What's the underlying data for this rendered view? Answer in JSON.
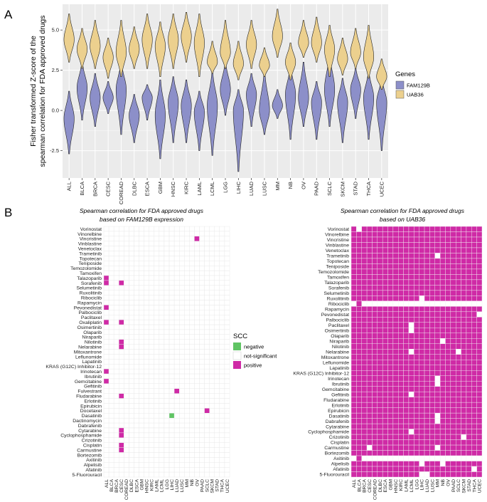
{
  "panel_a": {
    "label": "A",
    "legend": {
      "title": "Genes",
      "items": [
        {
          "name": "FAM129B",
          "color": "#8c8fc9"
        },
        {
          "name": "UAB36",
          "color": "#ecd08e"
        }
      ]
    }
  },
  "panel_b": {
    "label": "B",
    "left_title_line1": "Spearman correlation for FDA approved drugs",
    "left_title_line2": "based on FAM129B expression",
    "right_title_line1": "Spearman correlation for FDA approved drugs",
    "right_title_line2": "based on UAB36",
    "legend": {
      "title": "SCC",
      "items": [
        {
          "name": "negative",
          "color": "#5fc463"
        },
        {
          "name": "not-significant",
          "color": "#ffffff"
        },
        {
          "name": "positive",
          "color": "#cf2aa6"
        }
      ]
    }
  },
  "chart_data": [
    {
      "type": "violin",
      "title": "",
      "xlabel": "",
      "ylabel_line1": "Fisher transformed Z-score of the",
      "ylabel_line2": "spearman correlation for FDA approved drugs",
      "ylim": [
        -4.2,
        6.6
      ],
      "yticks": [
        "-2.5",
        "0.0",
        "2.5",
        "5.0"
      ],
      "ytick_values": [
        -2.5,
        0.0,
        2.5,
        5.0
      ],
      "categories": [
        "ALL",
        "BLCA",
        "BRCA",
        "CESC",
        "COREAD",
        "DLBC",
        "ESCA",
        "GBM",
        "HNSC",
        "KIRC",
        "LAML",
        "LCML",
        "LGG",
        "LIHC",
        "LUAD",
        "LUSC",
        "MM",
        "NB",
        "OV",
        "PAAD",
        "SCLC",
        "SKCM",
        "STAD",
        "THCA",
        "UCEC"
      ],
      "series": [
        {
          "name": "FAM129B",
          "min": [
            -2.7,
            -0.6,
            -1.0,
            -0.2,
            -1.5,
            -2.0,
            -0.6,
            -3.0,
            -2.0,
            -2.0,
            -2.5,
            -2.8,
            -0.3,
            -3.8,
            -1.0,
            -1.5,
            -0.5,
            -1.8,
            -1.0,
            -1.8,
            -1.0,
            -2.0,
            -0.5,
            -1.8,
            -2.5
          ],
          "mode": [
            -0.5,
            1.4,
            0.8,
            0.8,
            1.3,
            -0.3,
            0.8,
            -0.3,
            0.5,
            0.3,
            -0.1,
            0.3,
            1.3,
            0.0,
            1.0,
            0.0,
            0.3,
            1.0,
            0.8,
            0.5,
            1.3,
            0.5,
            1.3,
            0.8,
            0.5
          ],
          "max": [
            1.2,
            3.0,
            2.3,
            1.8,
            3.0,
            1.0,
            1.6,
            1.9,
            2.1,
            1.9,
            1.2,
            2.4,
            3.0,
            1.3,
            2.3,
            2.4,
            1.3,
            2.7,
            3.0,
            1.8,
            3.5,
            2.0,
            2.6,
            2.4,
            2.0
          ],
          "color": "#8c8fc9"
        },
        {
          "name": "UAB36",
          "min": [
            3.0,
            2.6,
            2.6,
            2.0,
            2.1,
            2.6,
            2.6,
            2.1,
            2.6,
            3.0,
            2.1,
            2.3,
            2.6,
            1.9,
            2.6,
            2.1,
            3.3,
            1.9,
            3.3,
            3.0,
            2.1,
            2.2,
            2.6,
            2.0,
            1.3
          ],
          "mode": [
            4.4,
            3.8,
            4.0,
            3.3,
            3.6,
            3.8,
            4.4,
            4.0,
            4.4,
            4.6,
            4.2,
            3.0,
            3.6,
            2.9,
            4.1,
            2.8,
            4.6,
            3.0,
            4.2,
            4.2,
            3.8,
            3.2,
            3.6,
            3.3,
            2.1
          ],
          "max": [
            6.0,
            5.1,
            5.6,
            4.5,
            5.6,
            5.2,
            6.0,
            5.5,
            6.0,
            6.1,
            6.0,
            4.3,
            5.6,
            4.3,
            5.6,
            3.9,
            6.3,
            4.2,
            5.6,
            5.8,
            5.3,
            4.5,
            5.1,
            5.3,
            3.2
          ],
          "color": "#ecd08e"
        }
      ]
    },
    {
      "type": "heatmap",
      "title": "Spearman correlation for FDA approved drugs based on FAM129B expression",
      "x": [
        "ALL",
        "BLCA",
        "BRCA",
        "CESC",
        "COREAD",
        "DLBC",
        "ESCA",
        "GBM",
        "HNSC",
        "KIRC",
        "LAML",
        "LCML",
        "LGG",
        "LIHC",
        "LUAD",
        "LUSC",
        "MM",
        "NB",
        "OV",
        "PAAD",
        "SCLC",
        "SKCM",
        "STAD",
        "THCA",
        "UCEC"
      ],
      "y": [
        "Vorinostat",
        "Vinorelbine",
        "Vincristine",
        "Vinblastine",
        "Venetoclax",
        "Trametinib",
        "Topotecan",
        "Teniposide",
        "Temozolomide",
        "Tamoxifen",
        "Talazoparib",
        "Sorafenib",
        "Selumetinib",
        "Ruxolitinib",
        "Ribociclib",
        "Rapamycin",
        "Pevonedistat",
        "Palbociclib",
        "Paclitaxel",
        "Oxaliplatin",
        "Osimertinib",
        "Olaparib",
        "Niraparib",
        "Nilotinib",
        "Nelarabine",
        "Mitoxantrone",
        "Leflunomide",
        "Lapatinib",
        "KRAS (G12C) Inhibitor-12",
        "Irinotecan",
        "Ibrutinib",
        "Gemcitabine",
        "Gefitinib",
        "Fulvestrant",
        "Fludarabine",
        "Erlotinib",
        "Epirubicin",
        "Docetaxel",
        "Dasatinib",
        "Dactinomycin",
        "Dabrafenib",
        "Cytarabine",
        "Cyclophosphamide",
        "Crizotinib",
        "Cisplatin",
        "Carmustine",
        "Bortezomib",
        "Axitinib",
        "Alpelisib",
        "Afatinib",
        "5-Fluorouracil"
      ],
      "default": "not-significant",
      "cells": [
        {
          "drug": "Vincristine",
          "cancer": "OV",
          "value": "positive"
        },
        {
          "drug": "Talazoparib",
          "cancer": "ALL",
          "value": "positive"
        },
        {
          "drug": "Sorafenib",
          "cancer": "ALL",
          "value": "positive"
        },
        {
          "drug": "Sorafenib",
          "cancer": "CESC",
          "value": "positive"
        },
        {
          "drug": "Pevonedistat",
          "cancer": "ALL",
          "value": "positive"
        },
        {
          "drug": "Oxaliplatin",
          "cancer": "ALL",
          "value": "positive"
        },
        {
          "drug": "Oxaliplatin",
          "cancer": "CESC",
          "value": "positive"
        },
        {
          "drug": "Nilotinib",
          "cancer": "CESC",
          "value": "positive"
        },
        {
          "drug": "Nelarabine",
          "cancer": "CESC",
          "value": "positive"
        },
        {
          "drug": "Irinotecan",
          "cancer": "ALL",
          "value": "positive"
        },
        {
          "drug": "Gemcitabine",
          "cancer": "ALL",
          "value": "positive"
        },
        {
          "drug": "Fulvestrant",
          "cancer": "LUAD",
          "value": "positive"
        },
        {
          "drug": "Fludarabine",
          "cancer": "CESC",
          "value": "positive"
        },
        {
          "drug": "Docetaxel",
          "cancer": "SCLC",
          "value": "positive"
        },
        {
          "drug": "Dasatinib",
          "cancer": "LIHC",
          "value": "negative"
        },
        {
          "drug": "Cytarabine",
          "cancer": "CESC",
          "value": "positive"
        },
        {
          "drug": "Cyclophosphamide",
          "cancer": "CESC",
          "value": "positive"
        },
        {
          "drug": "Cisplatin",
          "cancer": "CESC",
          "value": "positive"
        },
        {
          "drug": "Carmustine",
          "cancer": "CESC",
          "value": "positive"
        }
      ]
    },
    {
      "type": "heatmap",
      "title": "Spearman correlation for FDA approved drugs based on UAB36",
      "x": [
        "ALL",
        "BLCA",
        "BRCA",
        "CESC",
        "COREAD",
        "DLBC",
        "ESCA",
        "GBM",
        "HNSC",
        "KIRC",
        "LAML",
        "LCML",
        "LGG",
        "LIHC",
        "LUAD",
        "LUSC",
        "MM",
        "NB",
        "OV",
        "PAAD",
        "SCLC",
        "SKCM",
        "STAD",
        "THCA",
        "UCEC"
      ],
      "y": [
        "Vorinostat",
        "Vinorelbine",
        "Vincristine",
        "Vinblastine",
        "Venetoclax",
        "Trametinib",
        "Topotecan",
        "Teniposide",
        "Temozolomide",
        "Tamoxifen",
        "Talazoparib",
        "Sorafenib",
        "Selumetinib",
        "Ruxolitinib",
        "Ribociclib",
        "Rapamycin",
        "Pevonedistat",
        "Palbociclib",
        "Paclitaxel",
        "Osimertinib",
        "Olaparib",
        "Niraparib",
        "Nilotinib",
        "Nelarabine",
        "Mitoxantrone",
        "Leflunomide",
        "Lapatinib",
        "KRAS (G12C) Inhibitor-12",
        "Irinotecan",
        "Ibrutinib",
        "Gemcitabine",
        "Gefitinib",
        "Fludarabine",
        "Erlotinib",
        "Epirubicin",
        "Dasatinib",
        "Dabrafenib",
        "Cytarabine",
        "Cyclophosphamide",
        "Crizotinib",
        "Cisplatin",
        "Carmustine",
        "Bortezomib",
        "Axitinib",
        "Alpelisib",
        "Afatinib",
        "5-Fluorouracil"
      ],
      "default": "positive",
      "blank_rows": [
        "Ribociclib",
        "Axitinib"
      ],
      "cells": [
        {
          "drug": "Vorinostat",
          "cancer": "BLCA",
          "value": "not-significant"
        },
        {
          "drug": "Trametinib",
          "cancer": "MM",
          "value": "not-significant"
        },
        {
          "drug": "Ruxolitinib",
          "cancer": "LIHC",
          "value": "not-significant"
        },
        {
          "drug": "Ribociclib",
          "cancer": "BLCA",
          "value": "positive"
        },
        {
          "drug": "Pevonedistat",
          "cancer": "UCEC",
          "value": "not-significant"
        },
        {
          "drug": "Paclitaxel",
          "cancer": "LCML",
          "value": "not-significant"
        },
        {
          "drug": "Osimertinib",
          "cancer": "LCML",
          "value": "not-significant"
        },
        {
          "drug": "Niraparib",
          "cancer": "NB",
          "value": "not-significant"
        },
        {
          "drug": "Nelarabine",
          "cancer": "LCML",
          "value": "not-significant"
        },
        {
          "drug": "Nelarabine",
          "cancer": "SCLC",
          "value": "not-significant"
        },
        {
          "drug": "Irinotecan",
          "cancer": "MM",
          "value": "not-significant"
        },
        {
          "drug": "Ibrutinib",
          "cancer": "MM",
          "value": "not-significant"
        },
        {
          "drug": "Gefitinib",
          "cancer": "LCML",
          "value": "not-significant"
        },
        {
          "drug": "Dasatinib",
          "cancer": "MM",
          "value": "not-significant"
        },
        {
          "drug": "Dabrafenib",
          "cancer": "MM",
          "value": "not-significant"
        },
        {
          "drug": "Cyclophosphamide",
          "cancer": "LCML",
          "value": "not-significant"
        },
        {
          "drug": "Crizotinib",
          "cancer": "SKCM",
          "value": "not-significant"
        },
        {
          "drug": "Carmustine",
          "cancer": "CESC",
          "value": "not-significant"
        },
        {
          "drug": "Carmustine",
          "cancer": "MM",
          "value": "not-significant"
        },
        {
          "drug": "Axitinib",
          "cancer": "BLCA",
          "value": "positive"
        },
        {
          "drug": "Alpelisib",
          "cancer": "LIHC",
          "value": "not-significant"
        },
        {
          "drug": "Alpelisib",
          "cancer": "NB",
          "value": "not-significant"
        },
        {
          "drug": "Afatinib",
          "cancer": "THCA",
          "value": "not-significant"
        },
        {
          "drug": "5-Fluorouracil",
          "cancer": "LIHC",
          "value": "not-significant"
        },
        {
          "drug": "5-Fluorouracil",
          "cancer": "LUAD",
          "value": "not-significant"
        }
      ]
    }
  ]
}
